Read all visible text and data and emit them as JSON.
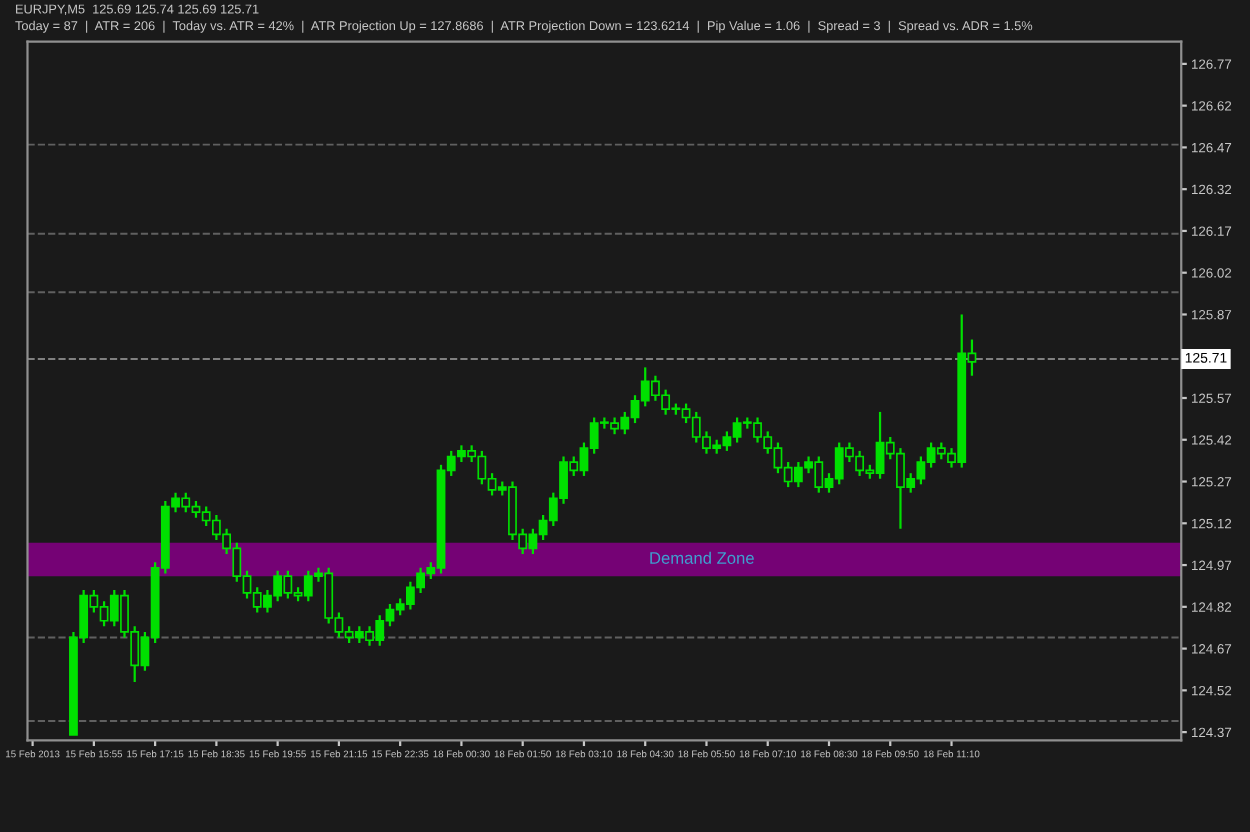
{
  "chart_data": {
    "type": "candlestick",
    "title": "EURJPY,M5  125.69 125.74 125.69 125.71",
    "subtitle": "Today = 87  |  ATR = 206  |  Today vs. ATR = 42%  |  ATR Projection Up = 127.8686  |  ATR Projection Down = 123.6214  |  Pip Value = 1.06  |  Spread = 3  |  Spread vs. ADR = 1.5%",
    "categories": [
      "15 Feb 2013",
      null,
      null,
      null,
      null,
      null,
      "15 Feb 15:55",
      null,
      null,
      null,
      null,
      null,
      "15 Feb 17:15",
      null,
      null,
      null,
      null,
      null,
      "15 Feb 18:35",
      null,
      null,
      null,
      null,
      null,
      "15 Feb 19:55",
      null,
      null,
      null,
      null,
      null,
      "15 Feb 21:15",
      null,
      null,
      null,
      null,
      null,
      "15 Feb 22:35",
      null,
      null,
      null,
      null,
      null,
      "18 Feb 00:30",
      null,
      null,
      null,
      null,
      null,
      "18 Feb 01:50",
      null,
      null,
      null,
      null,
      null,
      "18 Feb 03:10",
      null,
      null,
      null,
      null,
      null,
      "18 Feb 04:30",
      null,
      null,
      null,
      null,
      null,
      "18 Feb 05:50",
      null,
      null,
      null,
      null,
      null,
      "18 Feb 07:10",
      null,
      null,
      null,
      null,
      null,
      "18 Feb 08:30",
      null,
      null,
      null,
      null,
      null,
      "18 Feb 09:50",
      null,
      null,
      null,
      null,
      null,
      "18 Feb 11:10",
      null,
      null,
      null,
      null,
      null,
      null,
      null,
      null,
      null,
      null,
      null,
      null,
      null,
      null,
      null,
      null,
      null,
      null,
      null,
      null,
      null,
      null
    ],
    "series": [
      {
        "color": "#00e000",
        "ohlc": [
          null,
          null,
          null,
          null,
          [
            124.36,
            124.73,
            124.36,
            124.71
          ],
          [
            124.71,
            124.88,
            124.69,
            124.86
          ],
          [
            124.86,
            124.88,
            124.8,
            124.82
          ],
          [
            124.82,
            124.84,
            124.75,
            124.77
          ],
          [
            124.77,
            124.88,
            124.75,
            124.86
          ],
          [
            124.86,
            124.88,
            124.71,
            124.73
          ],
          [
            124.73,
            124.75,
            124.55,
            124.61
          ],
          [
            124.61,
            124.73,
            124.59,
            124.71
          ],
          [
            124.71,
            124.98,
            124.69,
            124.96
          ],
          [
            124.96,
            125.2,
            124.94,
            125.18
          ],
          [
            125.18,
            125.23,
            125.16,
            125.21
          ],
          [
            125.21,
            125.23,
            125.16,
            125.18
          ],
          [
            125.18,
            125.2,
            125.14,
            125.16
          ],
          [
            125.16,
            125.18,
            125.11,
            125.13
          ],
          [
            125.13,
            125.15,
            125.06,
            125.08
          ],
          [
            125.08,
            125.1,
            125.01,
            125.03
          ],
          [
            125.03,
            125.05,
            124.91,
            124.93
          ],
          [
            124.93,
            124.95,
            124.85,
            124.87
          ],
          [
            124.87,
            124.89,
            124.8,
            124.82
          ],
          [
            124.82,
            124.88,
            124.8,
            124.86
          ],
          [
            124.86,
            124.95,
            124.84,
            124.93
          ],
          [
            124.93,
            124.95,
            124.85,
            124.87
          ],
          [
            124.87,
            124.89,
            124.84,
            124.86
          ],
          [
            124.86,
            124.95,
            124.84,
            124.93
          ],
          [
            124.93,
            124.96,
            124.91,
            124.94
          ],
          [
            124.94,
            124.96,
            124.76,
            124.78
          ],
          [
            124.78,
            124.8,
            124.71,
            124.73
          ],
          [
            124.73,
            124.75,
            124.69,
            124.71
          ],
          [
            124.71,
            124.75,
            124.69,
            124.73
          ],
          [
            124.73,
            124.75,
            124.68,
            124.7
          ],
          [
            124.7,
            124.79,
            124.68,
            124.77
          ],
          [
            124.77,
            124.83,
            124.75,
            124.81
          ],
          [
            124.81,
            124.85,
            124.79,
            124.83
          ],
          [
            124.83,
            124.91,
            124.81,
            124.89
          ],
          [
            124.89,
            124.96,
            124.87,
            124.94
          ],
          [
            124.94,
            124.98,
            124.92,
            124.96
          ],
          [
            124.96,
            125.33,
            124.94,
            125.31
          ],
          [
            125.31,
            125.38,
            125.29,
            125.36
          ],
          [
            125.36,
            125.4,
            125.34,
            125.38
          ],
          [
            125.38,
            125.4,
            125.34,
            125.36
          ],
          [
            125.36,
            125.38,
            125.26,
            125.28
          ],
          [
            125.28,
            125.3,
            125.22,
            125.24
          ],
          [
            125.24,
            125.27,
            125.22,
            125.25
          ],
          [
            125.25,
            125.27,
            125.06,
            125.08
          ],
          [
            125.08,
            125.1,
            125.01,
            125.03
          ],
          [
            125.03,
            125.1,
            125.01,
            125.08
          ],
          [
            125.08,
            125.15,
            125.06,
            125.13
          ],
          [
            125.13,
            125.23,
            125.11,
            125.21
          ],
          [
            125.21,
            125.36,
            125.19,
            125.34
          ],
          [
            125.34,
            125.36,
            125.29,
            125.31
          ],
          [
            125.31,
            125.41,
            125.29,
            125.39
          ],
          [
            125.39,
            125.5,
            125.37,
            125.48
          ],
          [
            125.48,
            125.5,
            125.46,
            125.48
          ],
          [
            125.48,
            125.5,
            125.44,
            125.46
          ],
          [
            125.46,
            125.52,
            125.44,
            125.5
          ],
          [
            125.5,
            125.58,
            125.48,
            125.56
          ],
          [
            125.56,
            125.68,
            125.54,
            125.63
          ],
          [
            125.63,
            125.65,
            125.56,
            125.58
          ],
          [
            125.58,
            125.6,
            125.51,
            125.53
          ],
          [
            125.53,
            125.55,
            125.51,
            125.53
          ],
          [
            125.53,
            125.55,
            125.48,
            125.5
          ],
          [
            125.5,
            125.52,
            125.41,
            125.43
          ],
          [
            125.43,
            125.45,
            125.37,
            125.39
          ],
          [
            125.39,
            125.42,
            125.37,
            125.4
          ],
          [
            125.4,
            125.45,
            125.38,
            125.43
          ],
          [
            125.43,
            125.5,
            125.41,
            125.48
          ],
          [
            125.48,
            125.5,
            125.46,
            125.48
          ],
          [
            125.48,
            125.5,
            125.41,
            125.43
          ],
          [
            125.43,
            125.45,
            125.37,
            125.39
          ],
          [
            125.39,
            125.41,
            125.3,
            125.32
          ],
          [
            125.32,
            125.34,
            125.25,
            125.27
          ],
          [
            125.27,
            125.34,
            125.25,
            125.32
          ],
          [
            125.32,
            125.36,
            125.3,
            125.34
          ],
          [
            125.34,
            125.36,
            125.23,
            125.25
          ],
          [
            125.25,
            125.3,
            125.23,
            125.28
          ],
          [
            125.28,
            125.41,
            125.26,
            125.39
          ],
          [
            125.39,
            125.41,
            125.34,
            125.36
          ],
          [
            125.36,
            125.38,
            125.29,
            125.31
          ],
          [
            125.31,
            125.33,
            125.28,
            125.3
          ],
          [
            125.3,
            125.52,
            125.28,
            125.41
          ],
          [
            125.41,
            125.43,
            125.35,
            125.37
          ],
          [
            125.37,
            125.39,
            125.1,
            125.25
          ],
          [
            125.25,
            125.3,
            125.23,
            125.28
          ],
          [
            125.28,
            125.36,
            125.26,
            125.34
          ],
          [
            125.34,
            125.41,
            125.32,
            125.39
          ],
          [
            125.39,
            125.41,
            125.35,
            125.37
          ],
          [
            125.37,
            125.39,
            125.32,
            125.34
          ],
          [
            125.34,
            125.87,
            125.32,
            125.73
          ],
          [
            125.73,
            125.78,
            125.65,
            125.7
          ],
          null,
          null,
          null,
          null,
          null,
          null,
          null,
          null,
          null,
          null,
          null,
          null,
          null,
          null,
          null,
          null,
          null,
          null,
          null,
          null
        ]
      }
    ],
    "ylim": [
      124.34,
      126.85
    ],
    "yticks": [
      124.37,
      124.52,
      124.67,
      124.82,
      124.97,
      125.12,
      125.27,
      125.42,
      125.57,
      125.87,
      126.02,
      126.17,
      126.32,
      126.47,
      126.62,
      126.77
    ],
    "ref_lines": [
      {
        "axis": "y",
        "value": 126.48,
        "label": null,
        "color": "#606060",
        "line_style": "dashed"
      },
      {
        "axis": "y",
        "value": 126.16,
        "label": null,
        "color": "#606060",
        "line_style": "dashed"
      },
      {
        "axis": "y",
        "value": 125.95,
        "label": null,
        "color": "#606060",
        "line_style": "dashed"
      },
      {
        "axis": "y",
        "value": 125.71,
        "label": "125.71",
        "color": "#808080",
        "line_style": "dashed"
      },
      {
        "axis": "y",
        "value": 124.71,
        "label": null,
        "color": "#606060",
        "line_style": "dashed"
      },
      {
        "axis": "y",
        "value": 124.41,
        "label": null,
        "color": "#606060",
        "line_style": "dashed"
      }
    ],
    "bands": [
      {
        "axis": "y",
        "from": 124.93,
        "to": 125.05,
        "label": "Demand Zone",
        "color": "#800080"
      }
    ],
    "grid": false,
    "legend": false
  }
}
